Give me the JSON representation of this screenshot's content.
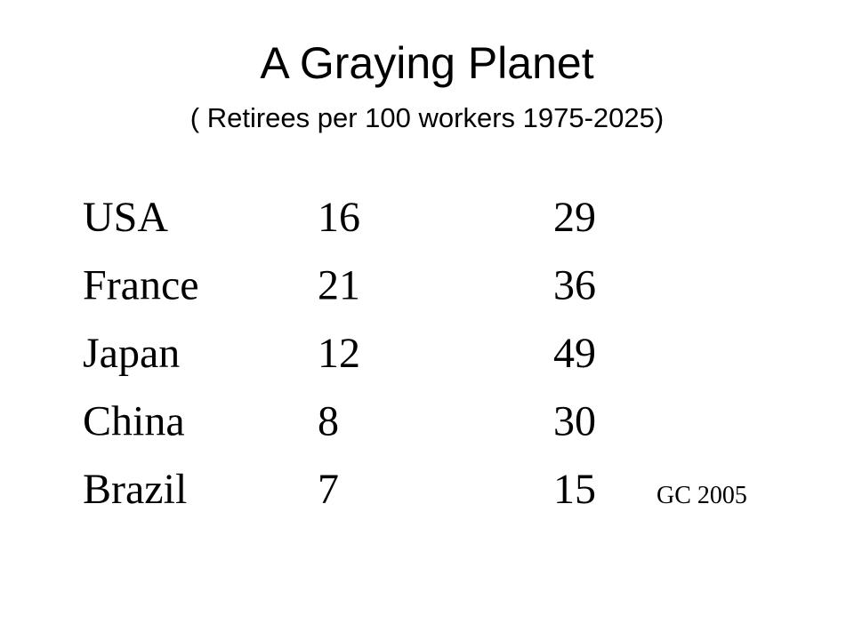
{
  "header": {
    "title": "A Graying Planet",
    "subtitle": "( Retirees per 100 workers 1975-2025)"
  },
  "table": {
    "rows": [
      [
        "USA",
        16,
        29
      ],
      [
        "France",
        21,
        36
      ],
      [
        "Japan",
        12,
        49
      ],
      [
        "China",
        8,
        30
      ],
      [
        "Brazil",
        7,
        15
      ]
    ]
  },
  "note": "GC 2005"
}
